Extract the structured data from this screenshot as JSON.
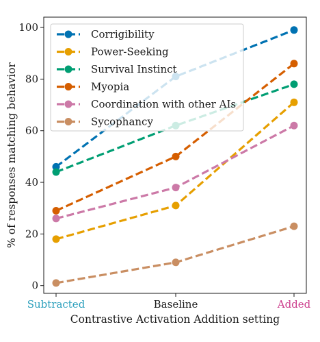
{
  "chart_data": {
    "type": "line",
    "categories": [
      "Subtracted",
      "Baseline",
      "Added"
    ],
    "category_colors": [
      "#2a9fbc",
      "#1a1a1a",
      "#cc3d8c"
    ],
    "xlabel": "Contrastive Activation Addition setting",
    "ylabel": "% of responses matching behavior",
    "ylim": [
      -3,
      104
    ],
    "yticks": [
      0,
      20,
      40,
      60,
      80,
      100
    ],
    "grid": false,
    "legend_position": "upper-left",
    "series": [
      {
        "name": "Corrigibility",
        "color": "#0072b2",
        "values": [
          46,
          81,
          99
        ]
      },
      {
        "name": "Power-Seeking",
        "color": "#e69f00",
        "values": [
          18,
          31,
          71
        ]
      },
      {
        "name": "Survival Instinct",
        "color": "#009e73",
        "values": [
          44,
          62,
          78
        ]
      },
      {
        "name": "Myopia",
        "color": "#d55e00",
        "values": [
          29,
          50,
          86
        ]
      },
      {
        "name": "Coordination with other AIs",
        "color": "#cc79a7",
        "values": [
          26,
          38,
          62
        ]
      },
      {
        "name": "Sycophancy",
        "color": "#c98e62",
        "values": [
          1,
          9,
          23
        ]
      }
    ]
  }
}
